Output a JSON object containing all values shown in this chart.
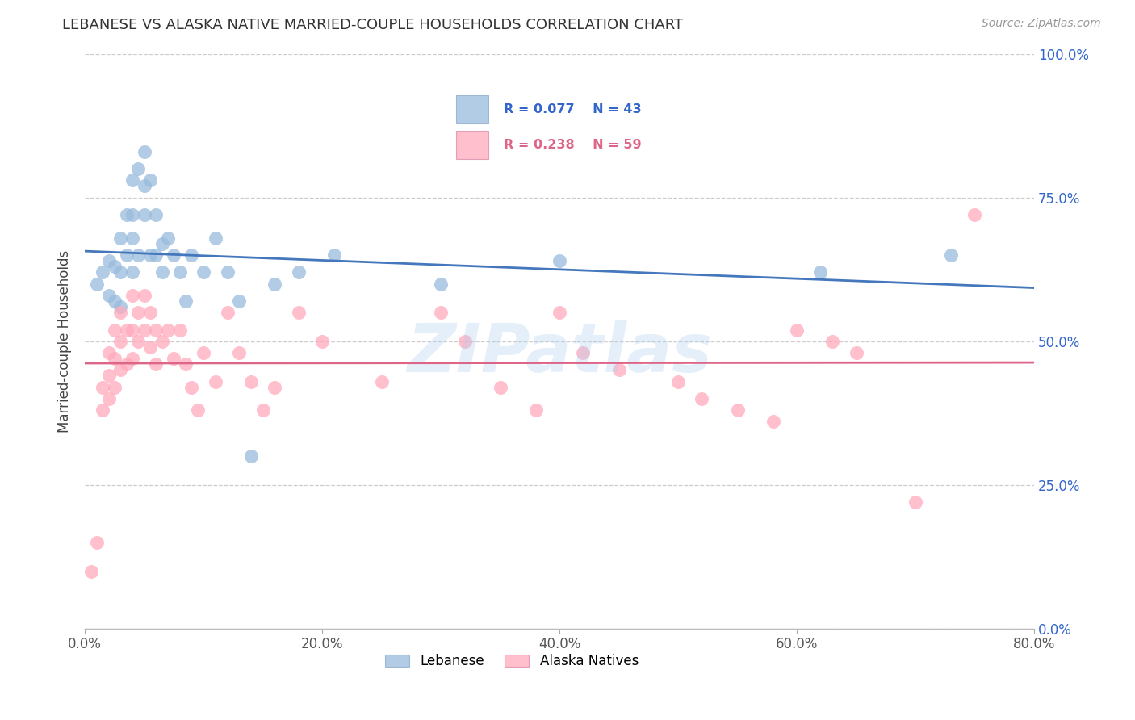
{
  "title": "LEBANESE VS ALASKA NATIVE MARRIED-COUPLE HOUSEHOLDS CORRELATION CHART",
  "source": "Source: ZipAtlas.com",
  "ylabel": "Married-couple Households",
  "lebanese_R": 0.077,
  "lebanese_N": 43,
  "alaska_R": 0.238,
  "alaska_N": 59,
  "blue_scatter_color": "#99BBDD",
  "pink_scatter_color": "#FFAABB",
  "blue_line_color": "#4477BB",
  "pink_line_color": "#DD6688",
  "legend_label_1": "Lebanese",
  "legend_label_2": "Alaska Natives",
  "watermark": "ZIPatlas",
  "xlim": [
    0.0,
    0.8
  ],
  "ylim": [
    0.0,
    1.0
  ],
  "ytick_positions": [
    0.0,
    0.25,
    0.5,
    0.75,
    1.0
  ],
  "ytick_labels": [
    "0.0%",
    "25.0%",
    "50.0%",
    "75.0%",
    "100.0%"
  ],
  "xtick_positions": [
    0.0,
    0.2,
    0.4,
    0.6,
    0.8
  ],
  "xtick_labels": [
    "0.0%",
    "20.0%",
    "40.0%",
    "60.0%",
    "80.0%"
  ],
  "lebanese_x": [
    0.01,
    0.015,
    0.02,
    0.02,
    0.025,
    0.025,
    0.03,
    0.03,
    0.03,
    0.035,
    0.035,
    0.04,
    0.04,
    0.04,
    0.04,
    0.045,
    0.045,
    0.05,
    0.05,
    0.05,
    0.055,
    0.055,
    0.06,
    0.06,
    0.065,
    0.065,
    0.07,
    0.075,
    0.08,
    0.085,
    0.09,
    0.1,
    0.11,
    0.12,
    0.13,
    0.14,
    0.16,
    0.18,
    0.21,
    0.3,
    0.4,
    0.62,
    0.73
  ],
  "lebanese_y": [
    0.6,
    0.62,
    0.64,
    0.58,
    0.63,
    0.57,
    0.68,
    0.62,
    0.56,
    0.72,
    0.65,
    0.78,
    0.72,
    0.68,
    0.62,
    0.8,
    0.65,
    0.83,
    0.77,
    0.72,
    0.78,
    0.65,
    0.72,
    0.65,
    0.67,
    0.62,
    0.68,
    0.65,
    0.62,
    0.57,
    0.65,
    0.62,
    0.68,
    0.62,
    0.57,
    0.3,
    0.6,
    0.62,
    0.65,
    0.6,
    0.64,
    0.62,
    0.65
  ],
  "alaska_x": [
    0.005,
    0.01,
    0.015,
    0.015,
    0.02,
    0.02,
    0.02,
    0.025,
    0.025,
    0.025,
    0.03,
    0.03,
    0.03,
    0.035,
    0.035,
    0.04,
    0.04,
    0.04,
    0.045,
    0.045,
    0.05,
    0.05,
    0.055,
    0.055,
    0.06,
    0.06,
    0.065,
    0.07,
    0.075,
    0.08,
    0.085,
    0.09,
    0.095,
    0.1,
    0.11,
    0.12,
    0.13,
    0.14,
    0.15,
    0.16,
    0.18,
    0.2,
    0.25,
    0.3,
    0.32,
    0.35,
    0.38,
    0.4,
    0.42,
    0.45,
    0.5,
    0.52,
    0.55,
    0.58,
    0.6,
    0.63,
    0.65,
    0.7,
    0.75
  ],
  "alaska_y": [
    0.1,
    0.15,
    0.42,
    0.38,
    0.48,
    0.44,
    0.4,
    0.52,
    0.47,
    0.42,
    0.55,
    0.5,
    0.45,
    0.52,
    0.46,
    0.58,
    0.52,
    0.47,
    0.55,
    0.5,
    0.58,
    0.52,
    0.55,
    0.49,
    0.52,
    0.46,
    0.5,
    0.52,
    0.47,
    0.52,
    0.46,
    0.42,
    0.38,
    0.48,
    0.43,
    0.55,
    0.48,
    0.43,
    0.38,
    0.42,
    0.55,
    0.5,
    0.43,
    0.55,
    0.5,
    0.42,
    0.38,
    0.55,
    0.48,
    0.45,
    0.43,
    0.4,
    0.38,
    0.36,
    0.52,
    0.5,
    0.48,
    0.22,
    0.72
  ]
}
